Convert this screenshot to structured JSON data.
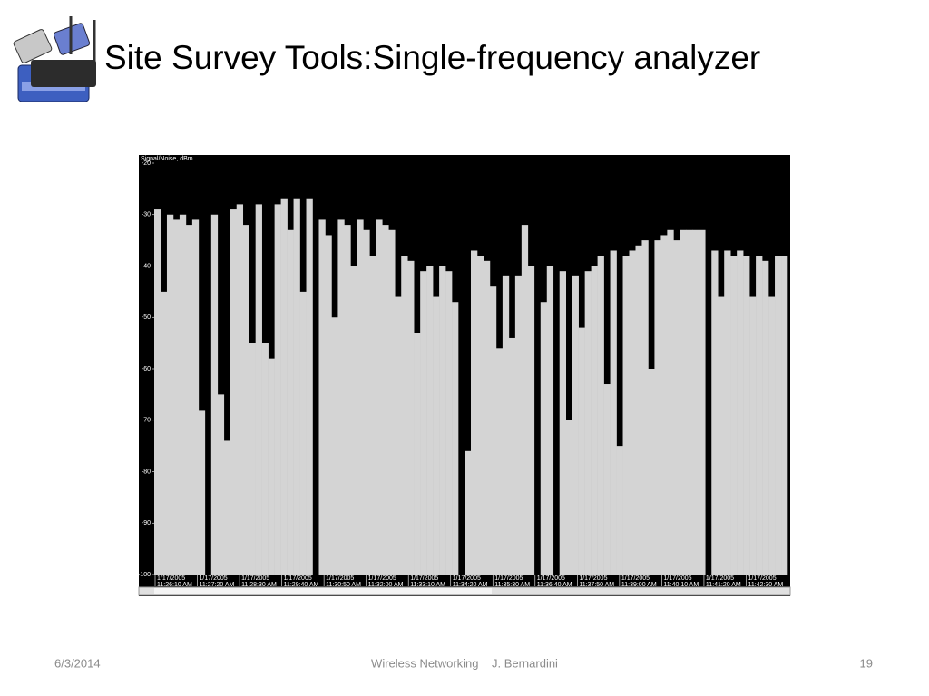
{
  "header": {
    "title": "Site Survey Tools:Single-frequency analyzer"
  },
  "figure": {
    "type": "area",
    "y_label": "Signal/Noise, dBm",
    "ylim": [
      -100,
      -20
    ],
    "yticks": [
      -20,
      -30,
      -40,
      -50,
      -60,
      -70,
      -80,
      -90,
      -100
    ],
    "x_labels": [
      {
        "date": "1/17/2005",
        "time": "11:26:10 AM"
      },
      {
        "date": "1/17/2005",
        "time": "11:27:20 AM"
      },
      {
        "date": "1/17/2005",
        "time": "11:28:30 AM"
      },
      {
        "date": "1/17/2005",
        "time": "11:29:40 AM"
      },
      {
        "date": "1/17/2005",
        "time": "11:30:50 AM"
      },
      {
        "date": "1/17/2005",
        "time": "11:32:00 AM"
      },
      {
        "date": "1/17/2005",
        "time": "11:33:10 AM"
      },
      {
        "date": "1/17/2005",
        "time": "11:34:20 AM"
      },
      {
        "date": "1/17/2005",
        "time": "11:35:30 AM"
      },
      {
        "date": "1/17/2005",
        "time": "11:36:40 AM"
      },
      {
        "date": "1/17/2005",
        "time": "11:37:50 AM"
      },
      {
        "date": "1/17/2005",
        "time": "11:39:00 AM"
      },
      {
        "date": "1/17/2005",
        "time": "11:40:10 AM"
      },
      {
        "date": "1/17/2005",
        "time": "11:41:20 AM"
      },
      {
        "date": "1/17/2005",
        "time": "11:42:30 AM"
      }
    ],
    "color": "#d4d4d4",
    "values": [
      -29,
      -45,
      -30,
      -31,
      -30,
      -32,
      -31,
      -68,
      -100,
      -30,
      -65,
      -74,
      -29,
      -28,
      -32,
      -55,
      -28,
      -55,
      -58,
      -28,
      -27,
      -33,
      -27,
      -45,
      -27,
      -100,
      -31,
      -34,
      -50,
      -31,
      -32,
      -40,
      -31,
      -33,
      -38,
      -31,
      -32,
      -33,
      -46,
      -38,
      -39,
      -53,
      -41,
      -40,
      -46,
      -40,
      -41,
      -47,
      -100,
      -76,
      -37,
      -38,
      -39,
      -44,
      -56,
      -42,
      -54,
      -42,
      -32,
      -40,
      -100,
      -47,
      -40,
      -100,
      -41,
      -70,
      -42,
      -52,
      -41,
      -40,
      -38,
      -63,
      -37,
      -75,
      -38,
      -37,
      -36,
      -35,
      -60,
      -35,
      -34,
      -33,
      -35,
      -33,
      -33,
      -33,
      -33,
      -100,
      -37,
      -46,
      -37,
      -38,
      -37,
      -38,
      -46,
      -38,
      -39,
      -46,
      -38,
      -38
    ]
  },
  "footer": {
    "date": "6/3/2014",
    "center": "Wireless Networking    J. Bernardini",
    "page": "19"
  }
}
